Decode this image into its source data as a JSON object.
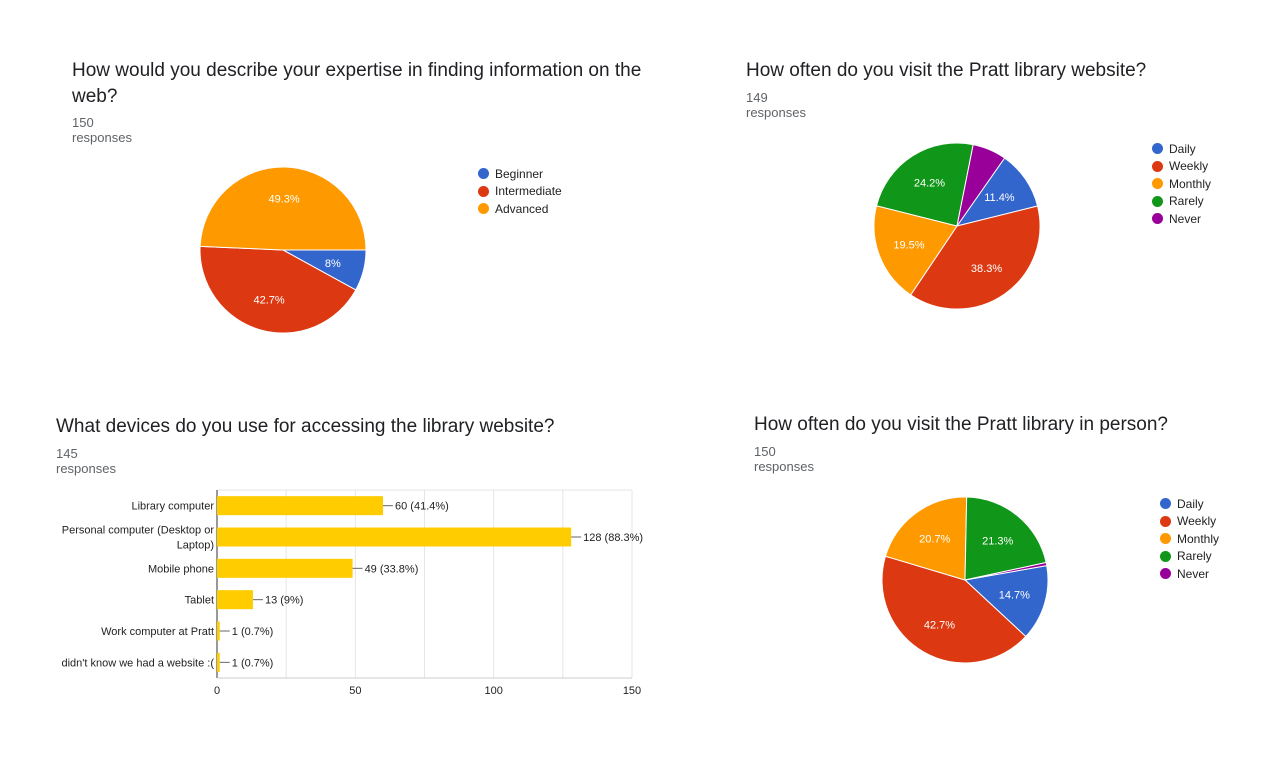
{
  "colors": {
    "blue": "#3366cc",
    "red": "#dc3912",
    "orange": "#ff9900",
    "green": "#109618",
    "purple": "#990099",
    "bar": "#ffcc00",
    "grid": "#e6e6e6",
    "axis": "#333333"
  },
  "chart_data": [
    {
      "type": "pie",
      "title": "How would you describe your expertise in finding information on the web?",
      "subtitle": "150 responses",
      "legend_position": "right",
      "slices": [
        {
          "label": "Beginner",
          "value": 8,
          "display": "8%",
          "color": "#3366cc"
        },
        {
          "label": "Intermediate",
          "value": 42.7,
          "display": "42.7%",
          "color": "#dc3912"
        },
        {
          "label": "Advanced",
          "value": 49.3,
          "display": "49.3%",
          "color": "#ff9900"
        }
      ]
    },
    {
      "type": "pie",
      "title": "How often do you visit the Pratt library website?",
      "subtitle": "149 responses",
      "legend_position": "right",
      "slices": [
        {
          "label": "Daily",
          "value": 11.4,
          "display": "11.4%",
          "color": "#3366cc"
        },
        {
          "label": "Weekly",
          "value": 38.3,
          "display": "38.3%",
          "color": "#dc3912"
        },
        {
          "label": "Monthly",
          "value": 19.5,
          "display": "19.5%",
          "color": "#ff9900"
        },
        {
          "label": "Rarely",
          "value": 24.2,
          "display": "24.2%",
          "color": "#109618"
        },
        {
          "label": "Never",
          "value": 6.6,
          "display": "",
          "color": "#990099"
        }
      ]
    },
    {
      "type": "bar",
      "orientation": "horizontal",
      "title": "What devices do you use for accessing the library website?",
      "subtitle": "145 responses",
      "categories": [
        "Library computer",
        "Personal computer (Desktop or Laptop)",
        "Mobile phone",
        "Tablet",
        "Work computer at Pratt",
        "didn't know we had a website :("
      ],
      "category_lines": [
        [
          "Library computer"
        ],
        [
          "Personal computer (Desktop or",
          "Laptop)"
        ],
        [
          "Mobile phone"
        ],
        [
          "Tablet"
        ],
        [
          "Work computer at Pratt"
        ],
        [
          "didn't know we had a website :("
        ]
      ],
      "values": [
        60,
        128,
        49,
        13,
        1,
        1
      ],
      "data_labels": [
        "60 (41.4%)",
        "128 (88.3%)",
        "49 (33.8%)",
        "13 (9%)",
        "1 (0.7%)",
        "1 (0.7%)"
      ],
      "xlim": [
        0,
        150
      ],
      "xticks": [
        0,
        50,
        100,
        150
      ],
      "grid": true
    },
    {
      "type": "pie",
      "title": "How often do you visit the Pratt library in person?",
      "subtitle": "150 responses",
      "legend_position": "right",
      "slices": [
        {
          "label": "Daily",
          "value": 14.7,
          "display": "14.7%",
          "color": "#3366cc"
        },
        {
          "label": "Weekly",
          "value": 42.7,
          "display": "42.7%",
          "color": "#dc3912"
        },
        {
          "label": "Monthly",
          "value": 20.7,
          "display": "20.7%",
          "color": "#ff9900"
        },
        {
          "label": "Rarely",
          "value": 21.3,
          "display": "21.3%",
          "color": "#109618"
        },
        {
          "label": "Never",
          "value": 0.6,
          "display": "",
          "color": "#990099"
        }
      ]
    }
  ]
}
